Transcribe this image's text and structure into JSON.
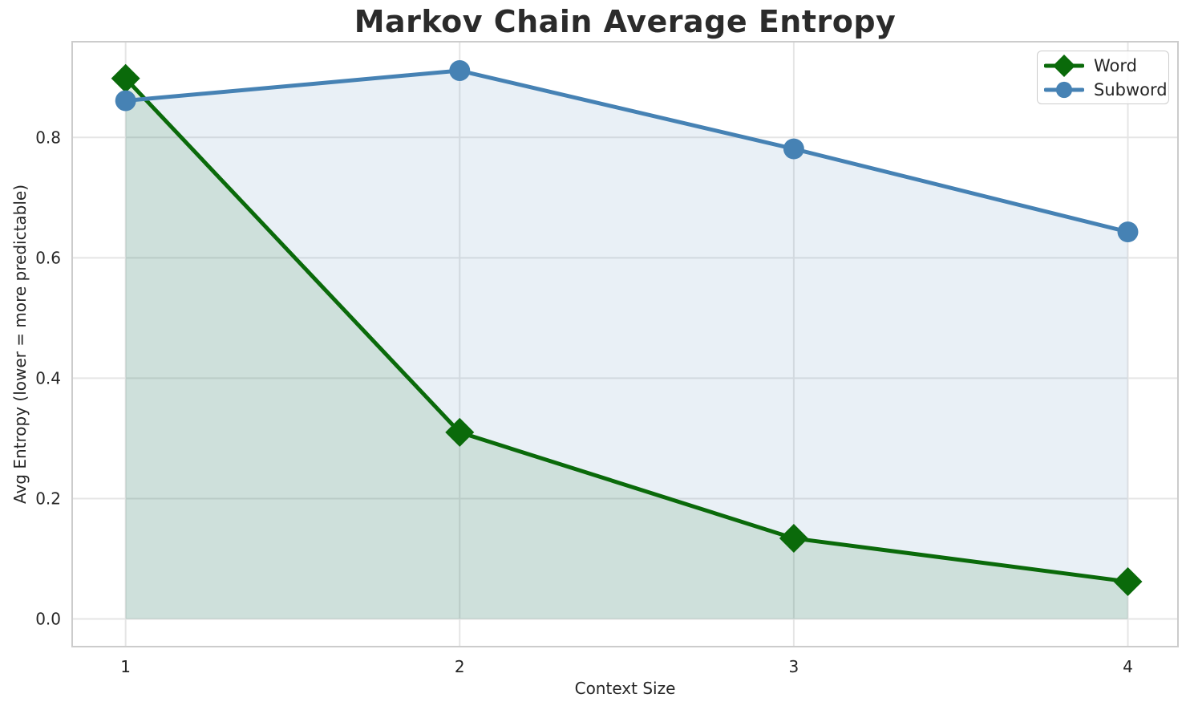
{
  "chart_data": {
    "type": "line",
    "title": "Markov Chain Average Entropy",
    "xlabel": "Context Size",
    "ylabel": "Avg Entropy (lower = more predictable)",
    "x": [
      1,
      2,
      3,
      4
    ],
    "series": [
      {
        "name": "Word",
        "values": [
          0.898,
          0.31,
          0.134,
          0.062
        ],
        "color": "#0a6a0a",
        "marker": "diamond"
      },
      {
        "name": "Subword",
        "values": [
          0.861,
          0.911,
          0.781,
          0.643
        ],
        "color": "#4682b4",
        "marker": "circle"
      }
    ],
    "xticks": [
      "1",
      "2",
      "3",
      "4"
    ],
    "yticks": [
      "0.0",
      "0.2",
      "0.4",
      "0.6",
      "0.8"
    ],
    "ytick_values": [
      0,
      0.2,
      0.4,
      0.6,
      0.8
    ],
    "xlim": [
      0.84,
      4.15
    ],
    "ylim": [
      -0.046,
      0.959
    ],
    "grid": true,
    "grid_color": "#e5e5e5",
    "axes_edge_color": "#cccccc",
    "text_color": "#262626",
    "fill_to_baseline": 0,
    "fill_alpha": 0.12,
    "line_width": 5,
    "legend_position": "upper right"
  }
}
